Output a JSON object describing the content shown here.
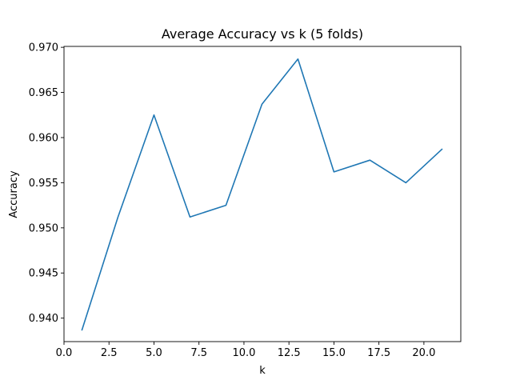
{
  "chart_data": {
    "type": "line",
    "title": "Average Accuracy vs k (5 folds)",
    "xlabel": "k",
    "ylabel": "Accuracy",
    "xlim": [
      0,
      22.05
    ],
    "ylim": [
      0.9374,
      0.9701
    ],
    "xticks": [
      "0.0",
      "2.5",
      "5.0",
      "7.5",
      "10.0",
      "12.5",
      "15.0",
      "17.5",
      "20.0"
    ],
    "yticks": [
      "0.940",
      "0.945",
      "0.950",
      "0.955",
      "0.960",
      "0.965",
      "0.970"
    ],
    "grid": false,
    "series": [
      {
        "color": "#1f77b4",
        "x": [
          1,
          3,
          5,
          7,
          9,
          11,
          13,
          15,
          17,
          19,
          21
        ],
        "y": [
          0.9387,
          0.9512,
          0.9625,
          0.9512,
          0.9525,
          0.9637,
          0.9687,
          0.9562,
          0.9575,
          0.955,
          0.9587
        ]
      }
    ]
  }
}
